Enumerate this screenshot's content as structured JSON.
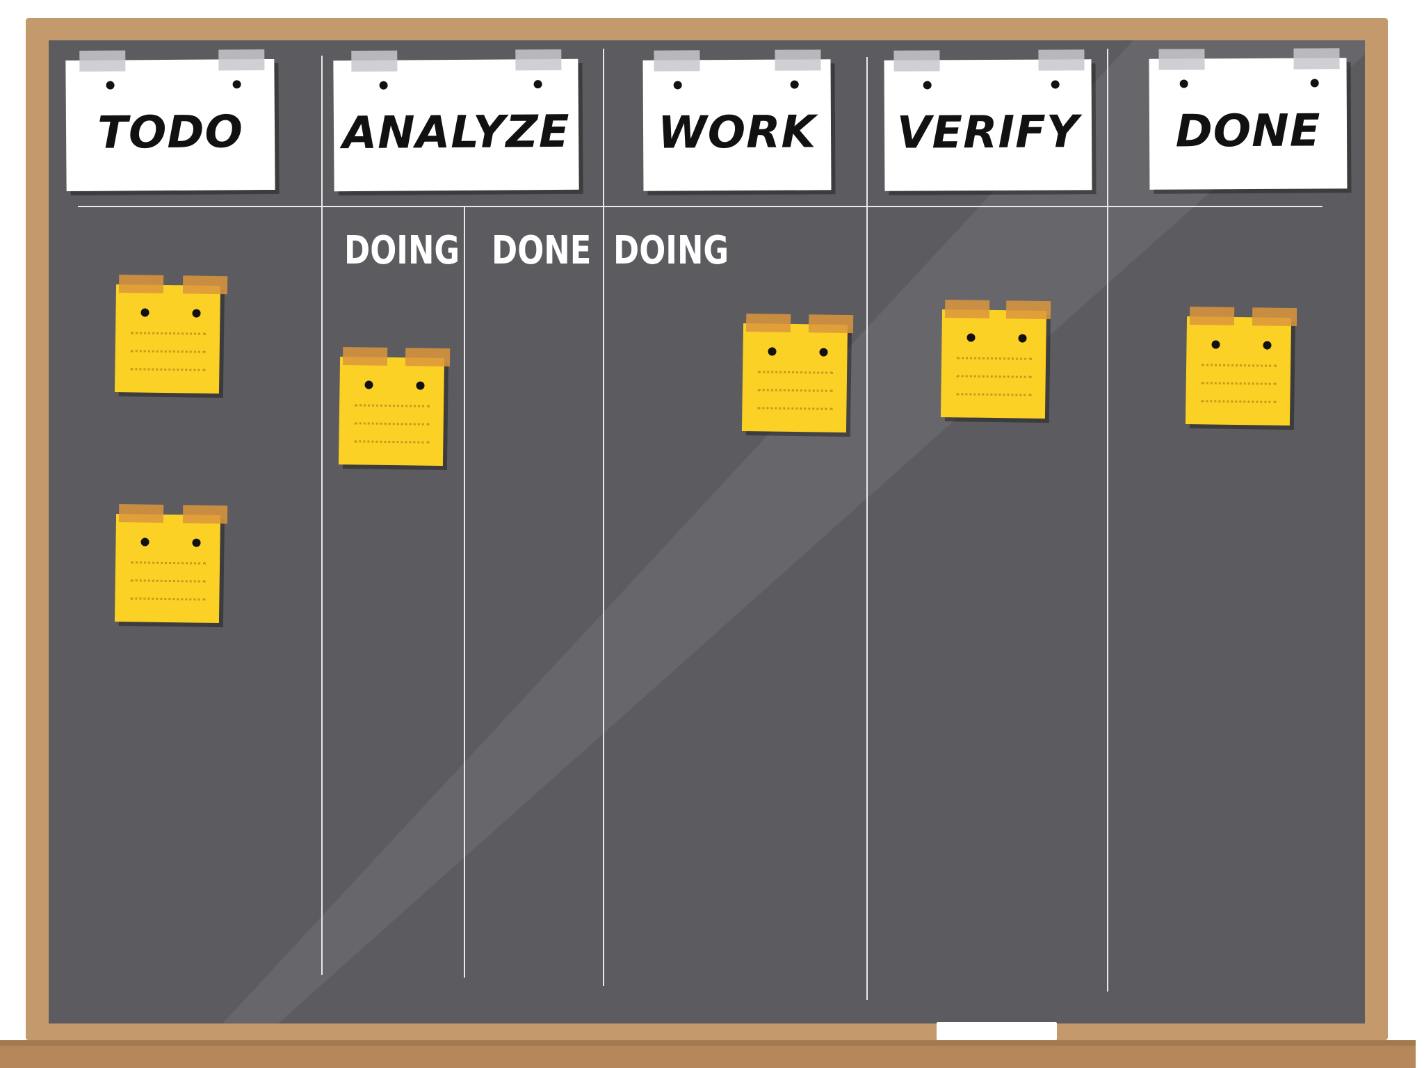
{
  "board": {
    "columns": [
      {
        "title": "TODO",
        "subcolumns": []
      },
      {
        "title": "ANALYZE",
        "subcolumns": [
          "DOING",
          "DONE"
        ]
      },
      {
        "title": "WORK",
        "subcolumns": [
          "DOING"
        ]
      },
      {
        "title": "VERIFY",
        "subcolumns": []
      },
      {
        "title": "DONE",
        "subcolumns": []
      }
    ],
    "colors": {
      "frame": "#c49a6c",
      "board": "#5c5b5f",
      "note": "#fbd126",
      "note_tape": "#db963c",
      "chalk": "#ffffff"
    }
  }
}
